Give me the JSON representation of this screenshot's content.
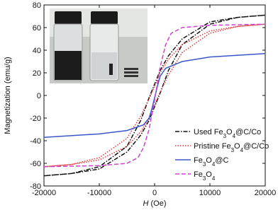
{
  "chart_data": {
    "type": "line",
    "xlabel": "H (Oe)",
    "ylabel": "Magnetization (emu/g)",
    "xlim": [
      -20000,
      20000
    ],
    "xticks": [
      -20000,
      -10000,
      0,
      10000,
      20000
    ],
    "ylim": [
      -80,
      80
    ],
    "yticks": [
      -80,
      -60,
      -40,
      -20,
      0,
      20,
      40,
      60,
      80
    ],
    "grid": false,
    "legend": "lower right",
    "series": [
      {
        "name": "Used Fe3O4@C/Co",
        "color": "#111111",
        "linestyle": "dashdot",
        "x": [
          -20000,
          -15000,
          -10000,
          -5000,
          -2500,
          -1000,
          0,
          1000,
          2500,
          5000,
          10000,
          15000,
          20000,
          15000,
          10000,
          5000,
          2500,
          1000,
          0,
          -1000,
          -2500,
          -5000,
          -10000,
          -15000,
          -20000
        ],
        "values": [
          -71,
          -69,
          -65,
          -50,
          -35,
          -22,
          -10,
          2,
          22,
          45,
          63,
          69,
          71,
          69,
          65,
          50,
          35,
          22,
          10,
          -2,
          -22,
          -45,
          -63,
          -69,
          -71
        ]
      },
      {
        "name": "Pristine Fe3O4@C/Co",
        "color": "#e03a3a",
        "linestyle": "dotted",
        "x": [
          -20000,
          -15000,
          -10000,
          -5000,
          -2500,
          -1000,
          0,
          1000,
          2500,
          5000,
          10000,
          15000,
          20000,
          15000,
          10000,
          5000,
          2500,
          1000,
          0,
          -1000,
          -2500,
          -5000,
          -10000,
          -15000,
          -20000
        ],
        "values": [
          -63,
          -61,
          -57,
          -45,
          -32,
          -20,
          -8,
          3,
          18,
          38,
          55,
          61,
          63,
          61,
          57,
          45,
          32,
          20,
          8,
          -3,
          -18,
          -38,
          -55,
          -61,
          -63
        ]
      },
      {
        "name": "Fe3O4@C",
        "color": "#3a55c8",
        "linestyle": "solid",
        "x": [
          -20000,
          -10000,
          -5000,
          -2000,
          -1000,
          -500,
          0,
          500,
          1000,
          2000,
          5000,
          10000,
          20000
        ],
        "values": [
          -37,
          -34,
          -31,
          -26,
          -20,
          -12,
          -2,
          8,
          17,
          24,
          30,
          34,
          37
        ]
      },
      {
        "name": "Fe3O4",
        "color": "#d040d0",
        "linestyle": "dashed",
        "x": [
          -20000,
          -10000,
          -5000,
          -3000,
          -2000,
          -1000,
          0,
          1000,
          2000,
          3000,
          5000,
          10000,
          20000
        ],
        "values": [
          -63,
          -62,
          -60,
          -55,
          -46,
          -30,
          -4,
          25,
          45,
          55,
          60,
          62,
          63
        ]
      }
    ]
  }
}
